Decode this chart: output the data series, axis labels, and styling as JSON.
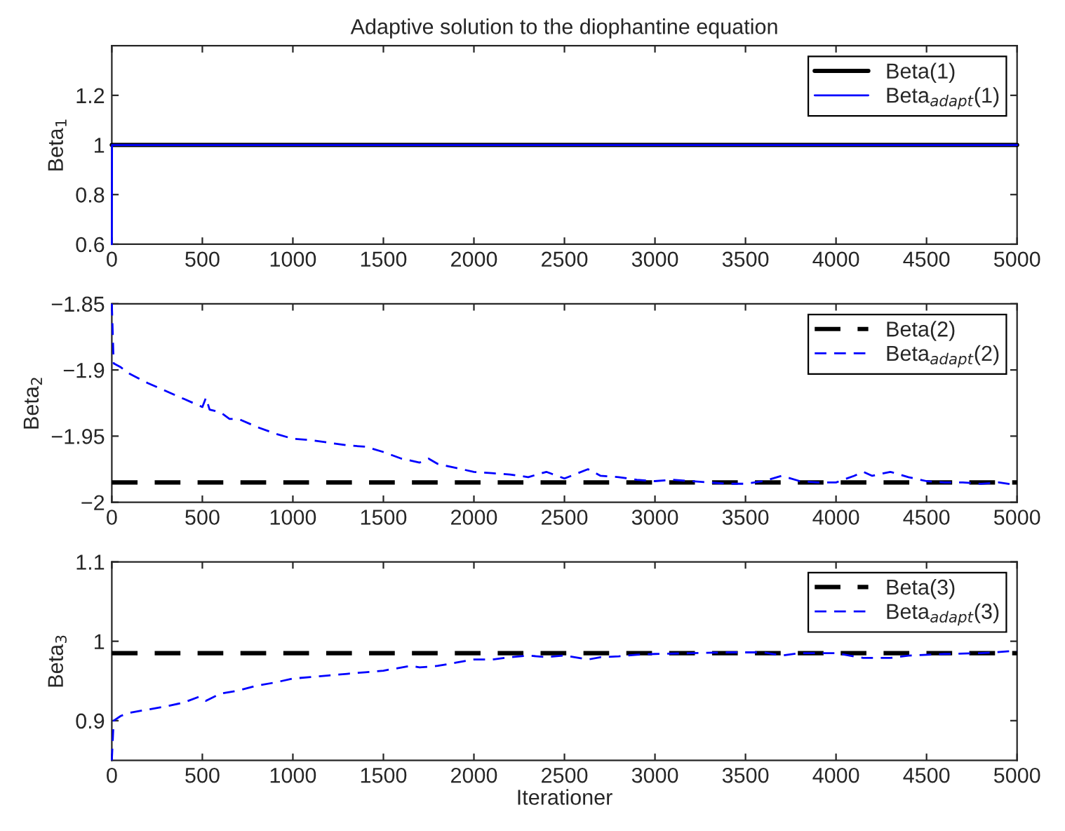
{
  "chart_data": [
    {
      "type": "line",
      "title": "Adaptive solution to the diophantine equation",
      "ylabel": "Beta$_{1}$",
      "xlim": [
        0,
        5000
      ],
      "xticks": [
        0,
        500,
        1000,
        1500,
        2000,
        2500,
        3000,
        3500,
        4000,
        4500,
        5000
      ],
      "ylim": [
        0.6,
        1.4
      ],
      "yticks": [
        0.6,
        0.8,
        1,
        1.2
      ],
      "legend": "top right",
      "grid": false,
      "series": [
        {
          "name": "Beta(1)",
          "color": "#000000",
          "line_style": "solid",
          "x": [
            0,
            5000
          ],
          "values": [
            1,
            1
          ]
        },
        {
          "name": "Beta$_{adapt}$(1)",
          "color": "#0000ff",
          "line_style": "solid",
          "x": [
            0,
            1,
            5000
          ],
          "values": [
            0.6,
            1,
            1
          ]
        }
      ]
    },
    {
      "type": "line",
      "ylabel": "Beta$_{2}$",
      "xlim": [
        0,
        5000
      ],
      "xticks": [
        0,
        500,
        1000,
        1500,
        2000,
        2500,
        3000,
        3500,
        4000,
        4500,
        5000
      ],
      "ylim": [
        -2,
        -1.85
      ],
      "yticks": [
        {
          "value": -2,
          "label": "−2"
        },
        {
          "value": -1.95,
          "label": "−1.95"
        },
        {
          "value": -1.9,
          "label": "−1.9"
        },
        {
          "value": -1.85,
          "label": "−1.85"
        }
      ],
      "legend": "top right",
      "grid": false,
      "series": [
        {
          "name": "Beta(2)",
          "color": "#000000",
          "line_style": "dashed",
          "x": [
            0,
            5000
          ],
          "values": [
            -1.985,
            -1.985
          ]
        },
        {
          "name": "Beta$_{adapt}$(2)",
          "color": "#0000ff",
          "line_style": "dashed",
          "x": [
            0,
            10,
            50,
            100,
            200,
            300,
            400,
            500,
            520,
            540,
            600,
            650,
            700,
            800,
            900,
            1000,
            1100,
            1200,
            1300,
            1400,
            1500,
            1600,
            1700,
            1750,
            1800,
            1900,
            2000,
            2100,
            2200,
            2300,
            2400,
            2500,
            2630,
            2700,
            2800,
            2900,
            3000,
            3100,
            3300,
            3400,
            3500,
            3600,
            3700,
            3800,
            3900,
            4000,
            4100,
            4150,
            4200,
            4300,
            4400,
            4500,
            4600,
            4700,
            4800,
            4900,
            5000
          ],
          "values": [
            -1.85,
            -1.895,
            -1.898,
            -1.903,
            -1.91,
            -1.916,
            -1.922,
            -1.928,
            -1.921,
            -1.93,
            -1.932,
            -1.937,
            -1.937,
            -1.943,
            -1.948,
            -1.952,
            -1.953,
            -1.955,
            -1.957,
            -1.958,
            -1.962,
            -1.967,
            -1.97,
            -1.967,
            -1.971,
            -1.974,
            -1.977,
            -1.978,
            -1.979,
            -1.981,
            -1.977,
            -1.982,
            -1.975,
            -1.98,
            -1.981,
            -1.983,
            -1.984,
            -1.983,
            -1.985,
            -1.986,
            -1.986,
            -1.984,
            -1.98,
            -1.984,
            -1.985,
            -1.985,
            -1.98,
            -1.977,
            -1.98,
            -1.977,
            -1.981,
            -1.984,
            -1.985,
            -1.985,
            -1.986,
            -1.985,
            -1.987
          ]
        }
      ]
    },
    {
      "type": "line",
      "ylabel": "Beta$_{3}$",
      "xlabel": "Iterationer",
      "xlim": [
        0,
        5000
      ],
      "xticks": [
        0,
        500,
        1000,
        1500,
        2000,
        2500,
        3000,
        3500,
        4000,
        4500,
        5000
      ],
      "ylim": [
        0.85,
        1.1
      ],
      "yticks": [
        0.9,
        1,
        1.1
      ],
      "legend": "top right",
      "grid": false,
      "series": [
        {
          "name": "Beta(3)",
          "color": "#000000",
          "line_style": "dashed",
          "x": [
            0,
            5000
          ],
          "values": [
            0.985,
            0.985
          ]
        },
        {
          "name": "Beta$_{adapt}$(3)",
          "color": "#0000ff",
          "line_style": "dashed",
          "x": [
            0,
            10,
            50,
            100,
            200,
            300,
            400,
            480,
            520,
            600,
            700,
            800,
            900,
            1000,
            1100,
            1200,
            1300,
            1400,
            1500,
            1650,
            1700,
            1800,
            1900,
            2000,
            2100,
            2200,
            2300,
            2400,
            2500,
            2630,
            2700,
            2800,
            2900,
            3000,
            3200,
            3400,
            3600,
            3700,
            3800,
            4000,
            4150,
            4300,
            4400,
            4600,
            4800,
            5000
          ],
          "values": [
            0.85,
            0.9,
            0.906,
            0.91,
            0.914,
            0.918,
            0.923,
            0.93,
            0.925,
            0.934,
            0.938,
            0.944,
            0.948,
            0.953,
            0.955,
            0.957,
            0.959,
            0.961,
            0.963,
            0.969,
            0.967,
            0.969,
            0.973,
            0.977,
            0.977,
            0.98,
            0.982,
            0.98,
            0.982,
            0.977,
            0.98,
            0.981,
            0.983,
            0.984,
            0.985,
            0.986,
            0.986,
            0.982,
            0.985,
            0.985,
            0.979,
            0.979,
            0.982,
            0.984,
            0.985,
            0.988
          ]
        }
      ]
    }
  ]
}
